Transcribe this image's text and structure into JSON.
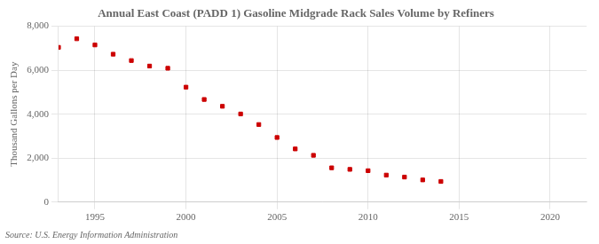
{
  "chart_data": {
    "type": "scatter",
    "title": "Annual East Coast (PADD 1) Gasoline Midgrade Rack Sales Volume by Refiners",
    "ylabel": "Thousand Gallons per Day",
    "annotations": [
      "Source: U.S. Energy Information Administration"
    ],
    "x": [
      1993,
      1994,
      1995,
      1996,
      1997,
      1998,
      1999,
      2000,
      2001,
      2002,
      2003,
      2004,
      2005,
      2006,
      2007,
      2008,
      2009,
      2010,
      2011,
      2012,
      2013,
      2014
    ],
    "values": [
      7040,
      7430,
      7150,
      6730,
      6440,
      6190,
      6090,
      5230,
      4670,
      4360,
      4010,
      3530,
      2940,
      2420,
      2130,
      1560,
      1490,
      1430,
      1230,
      1140,
      1010,
      940
    ],
    "color": "#cc0000",
    "marker": "square",
    "xlim": [
      1993,
      2022
    ],
    "xticks": [
      1995,
      2000,
      2005,
      2010,
      2015,
      2020
    ],
    "ylim": [
      0,
      8000
    ],
    "yticks": [
      0,
      {
        "value": 2000,
        "label": "2,000"
      },
      {
        "value": 4000,
        "label": "4,000"
      },
      {
        "value": 6000,
        "label": "6,000"
      },
      {
        "value": 8000,
        "label": "8,000"
      }
    ],
    "grid": true
  }
}
